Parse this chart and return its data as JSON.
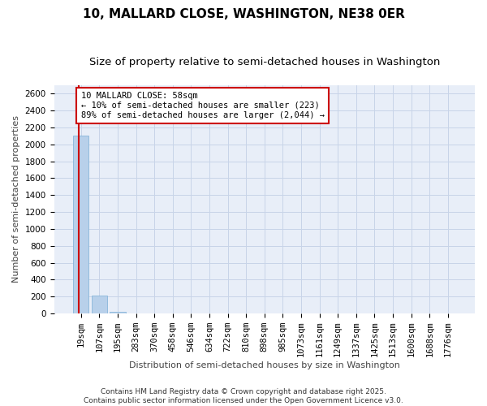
{
  "title": "10, MALLARD CLOSE, WASHINGTON, NE38 0ER",
  "subtitle": "Size of property relative to semi-detached houses in Washington",
  "xlabel": "Distribution of semi-detached houses by size in Washington",
  "ylabel": "Number of semi-detached properties",
  "categories": [
    "19sqm",
    "107sqm",
    "195sqm",
    "283sqm",
    "370sqm",
    "458sqm",
    "546sqm",
    "634sqm",
    "722sqm",
    "810sqm",
    "898sqm",
    "985sqm",
    "1073sqm",
    "1161sqm",
    "1249sqm",
    "1337sqm",
    "1425sqm",
    "1513sqm",
    "1600sqm",
    "1688sqm",
    "1776sqm"
  ],
  "values": [
    2100,
    210,
    20,
    3,
    1,
    1,
    0,
    0,
    0,
    0,
    0,
    0,
    0,
    0,
    0,
    0,
    0,
    0,
    0,
    0,
    0
  ],
  "bar_color": "#b8d0ea",
  "bar_edge_color": "#7aaed6",
  "grid_color": "#c8d4e8",
  "background_color": "#e8eef8",
  "red_line_x": -0.1,
  "annotation_text": "10 MALLARD CLOSE: 58sqm\n← 10% of semi-detached houses are smaller (223)\n89% of semi-detached houses are larger (2,044) →",
  "annotation_box_color": "#cc0000",
  "ylim": [
    0,
    2700
  ],
  "yticks": [
    0,
    200,
    400,
    600,
    800,
    1000,
    1200,
    1400,
    1600,
    1800,
    2000,
    2200,
    2400,
    2600
  ],
  "footnote": "Contains HM Land Registry data © Crown copyright and database right 2025.\nContains public sector information licensed under the Open Government Licence v3.0.",
  "title_fontsize": 11,
  "subtitle_fontsize": 9.5,
  "xlabel_fontsize": 8,
  "ylabel_fontsize": 8,
  "tick_fontsize": 7.5,
  "footnote_fontsize": 6.5
}
